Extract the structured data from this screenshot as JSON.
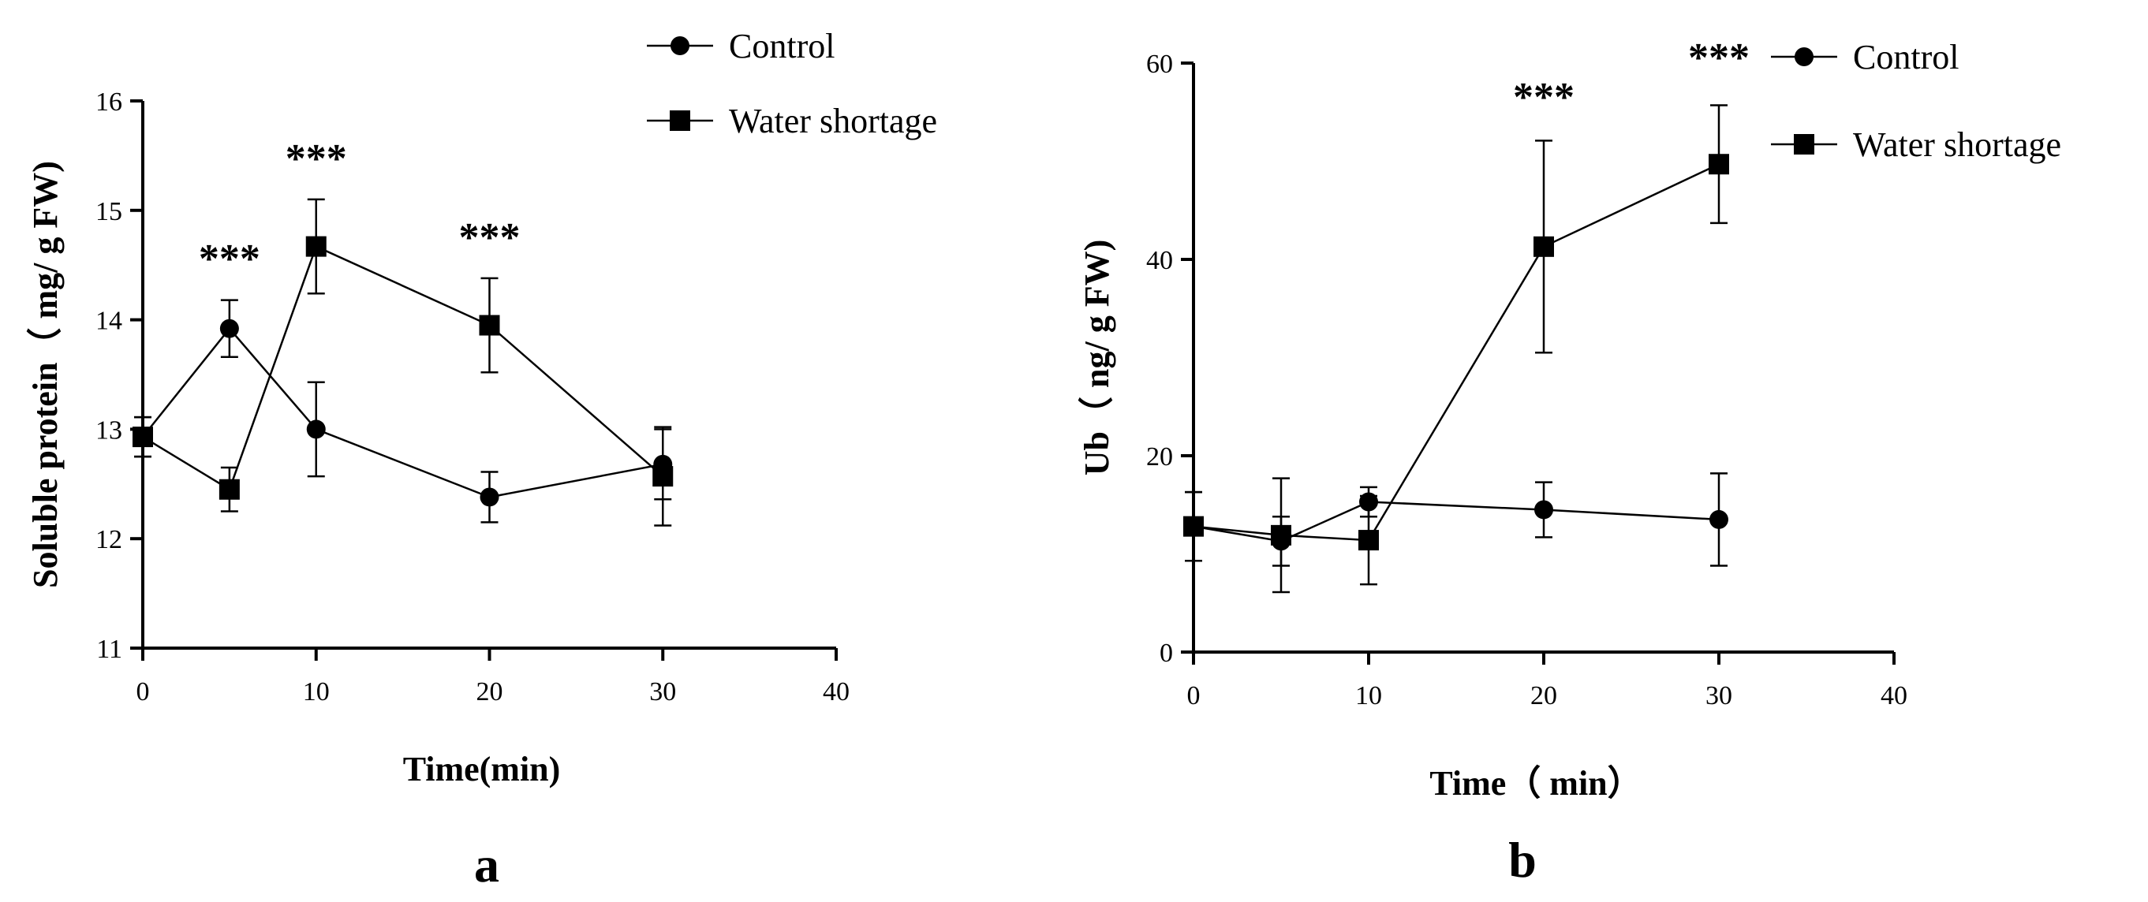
{
  "chart_data": [
    {
      "type": "line",
      "panel_label": "a",
      "xlabel": "Time(min)",
      "ylabel": "Soluble protein（ mg/ g FW)",
      "xlim": [
        0,
        40
      ],
      "ylim": [
        11,
        16
      ],
      "x_ticks": [
        0,
        10,
        20,
        30,
        40
      ],
      "y_ticks": [
        11,
        12,
        13,
        14,
        15,
        16
      ],
      "x_tick_labels": [
        "0",
        "10",
        "20",
        "30",
        "40"
      ],
      "y_tick_labels": [
        "11",
        "12",
        "13",
        "14",
        "15",
        "16"
      ],
      "legend_position": "top-right",
      "series": [
        {
          "name": "Control",
          "marker": "circle",
          "x": [
            0,
            5,
            10,
            20,
            30
          ],
          "y": [
            12.93,
            13.92,
            13.0,
            12.38,
            12.68
          ],
          "err": [
            0.18,
            0.26,
            0.43,
            0.23,
            0.32
          ]
        },
        {
          "name": "Water shortage",
          "marker": "square",
          "x": [
            0,
            5,
            10,
            20,
            30
          ],
          "y": [
            12.93,
            12.45,
            14.67,
            13.95,
            12.57
          ],
          "err": [
            0.18,
            0.2,
            0.43,
            0.43,
            0.45
          ]
        }
      ],
      "annotations": [
        {
          "text": "***",
          "x": 5
        },
        {
          "text": "***",
          "x": 10
        },
        {
          "text": "***",
          "x": 20
        }
      ]
    },
    {
      "type": "line",
      "panel_label": "b",
      "xlabel": "Time（ min）",
      "ylabel": "Ub（ ng/ g FW)",
      "xlim": [
        0,
        40
      ],
      "ylim": [
        0,
        60
      ],
      "x_ticks": [
        0,
        10,
        20,
        30,
        40
      ],
      "y_ticks": [
        0,
        20,
        40,
        60
      ],
      "x_tick_labels": [
        "0",
        "10",
        "20",
        "30",
        "40"
      ],
      "y_tick_labels": [
        "0",
        "20",
        "40",
        "60"
      ],
      "legend_position": "top-right",
      "series": [
        {
          "name": "Control",
          "marker": "circle",
          "x": [
            0,
            5,
            10,
            20,
            30
          ],
          "y": [
            12.8,
            11.3,
            15.3,
            14.5,
            13.5
          ],
          "err": [
            3.5,
            2.5,
            1.5,
            2.8,
            4.7
          ]
        },
        {
          "name": "Water shortage",
          "marker": "square",
          "x": [
            0,
            5,
            10,
            20,
            30
          ],
          "y": [
            12.8,
            11.9,
            11.4,
            41.3,
            49.7
          ],
          "err": [
            3.5,
            5.8,
            4.5,
            10.8,
            6.0
          ]
        }
      ],
      "annotations": [
        {
          "text": "***",
          "x": 20
        },
        {
          "text": "***",
          "x": 30
        }
      ]
    }
  ]
}
